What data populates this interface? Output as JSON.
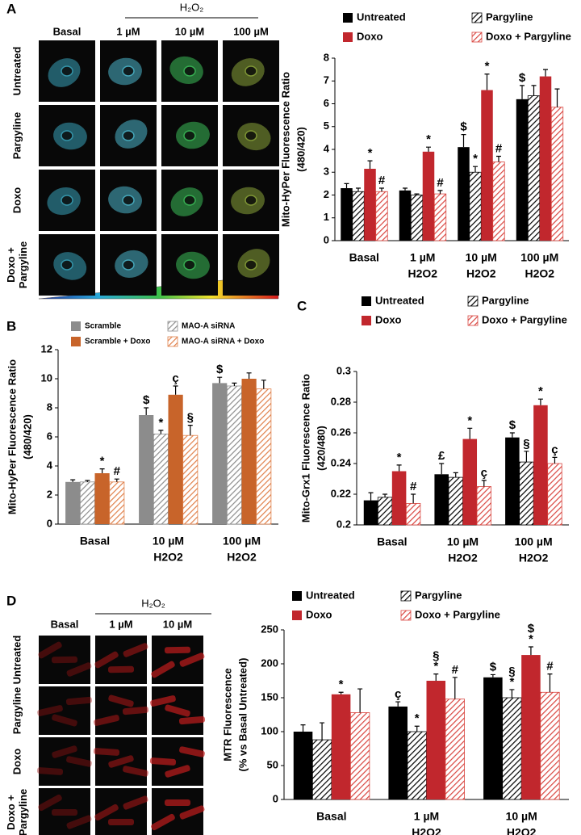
{
  "chart_data": [
    {
      "type": "bar",
      "panel_label": "A",
      "legend": "top",
      "ylabel": [
        "Mito-HyPer Fluorescence Ratio",
        "(480/420)"
      ],
      "categories": [
        [
          "Basal"
        ],
        [
          "1 µM",
          "H2O2"
        ],
        [
          "10 µM",
          "H2O2"
        ],
        [
          "100 µM",
          "H2O2"
        ]
      ],
      "ylim": [
        0,
        8
      ],
      "yticks": [
        0,
        1,
        2,
        3,
        4,
        5,
        6,
        7,
        8
      ],
      "series": [
        {
          "name": "Untreated",
          "color": "#000000",
          "hatch": false,
          "values": [
            2.3,
            2.2,
            4.1,
            6.2
          ],
          "errors": [
            0.2,
            0.1,
            0.55,
            0.6
          ],
          "annotations": [
            null,
            null,
            [
              "$"
            ],
            [
              "$"
            ]
          ]
        },
        {
          "name": "Pargyline",
          "color": "#000000",
          "hatch": true,
          "values": [
            2.15,
            2.0,
            3.0,
            6.35
          ],
          "errors": [
            0.15,
            0.05,
            0.25,
            0.45
          ],
          "annotations": [
            null,
            null,
            [
              "*"
            ],
            null
          ]
        },
        {
          "name": "Doxo",
          "color": "#c1272d",
          "hatch": false,
          "values": [
            3.15,
            3.9,
            6.6,
            7.2
          ],
          "errors": [
            0.35,
            0.2,
            0.7,
            0.3
          ],
          "annotations": [
            [
              "*"
            ],
            [
              "*"
            ],
            [
              "*"
            ],
            null
          ]
        },
        {
          "name": "Doxo + Pargyline",
          "color": "#d9453f",
          "hatch": true,
          "values": [
            2.15,
            2.05,
            3.45,
            5.85
          ],
          "errors": [
            0.15,
            0.15,
            0.25,
            0.8
          ],
          "annotations": [
            [
              "#"
            ],
            [
              "#"
            ],
            [
              "#"
            ],
            null
          ]
        }
      ]
    },
    {
      "type": "bar",
      "panel_label": "B",
      "legend": "top",
      "ylabel": [
        "Mito-HyPer Fluorescence Ratio",
        "(480/420)"
      ],
      "categories": [
        [
          "Basal"
        ],
        [
          "10 µM",
          "H2O2"
        ],
        [
          "100 µM",
          "H2O2"
        ]
      ],
      "ylim": [
        0,
        12
      ],
      "yticks": [
        0,
        2,
        4,
        6,
        8,
        10,
        12
      ],
      "series": [
        {
          "name": "Scramble",
          "color": "#8c8c8c",
          "hatch": false,
          "values": [
            2.9,
            7.5,
            9.7
          ],
          "errors": [
            0.15,
            0.5,
            0.4
          ],
          "annotations": [
            null,
            [
              "$"
            ],
            [
              "$"
            ]
          ]
        },
        {
          "name": "MAO-A siRNA",
          "color": "#8c8c8c",
          "hatch": true,
          "values": [
            2.9,
            6.2,
            9.5
          ],
          "errors": [
            0.1,
            0.25,
            0.2
          ],
          "annotations": [
            null,
            [
              "*"
            ],
            null
          ]
        },
        {
          "name": "Scramble + Doxo",
          "color": "#c8642a",
          "hatch": false,
          "values": [
            3.5,
            8.9,
            10.0
          ],
          "errors": [
            0.3,
            0.6,
            0.4
          ],
          "annotations": [
            [
              "*"
            ],
            [
              "ç"
            ],
            null
          ]
        },
        {
          "name": "MAO-A siRNA + Doxo",
          "color": "#e0804a",
          "hatch": true,
          "values": [
            2.9,
            6.1,
            9.3
          ],
          "errors": [
            0.2,
            0.7,
            0.6
          ],
          "annotations": [
            [
              "#"
            ],
            [
              "§"
            ],
            null
          ]
        }
      ]
    },
    {
      "type": "bar",
      "panel_label": "C",
      "legend": "top",
      "ylabel": [
        "Mito-Grx1 Fluorescence Ratio",
        "(420/480)"
      ],
      "categories": [
        [
          "Basal"
        ],
        [
          "10 µM",
          "H2O2"
        ],
        [
          "100 µM",
          "H2O2"
        ]
      ],
      "ylim": [
        0.2,
        0.3
      ],
      "yticks": [
        0.2,
        0.22,
        0.24,
        0.26,
        0.28,
        0.3
      ],
      "series": [
        {
          "name": "Untreated",
          "color": "#000000",
          "hatch": false,
          "values": [
            0.216,
            0.233,
            0.257
          ],
          "errors": [
            0.005,
            0.007,
            0.003
          ],
          "annotations": [
            null,
            [
              "£"
            ],
            [
              "$"
            ]
          ]
        },
        {
          "name": "Pargyline",
          "color": "#000000",
          "hatch": true,
          "values": [
            0.218,
            0.231,
            0.241
          ],
          "errors": [
            0.002,
            0.003,
            0.007
          ],
          "annotations": [
            null,
            null,
            [
              "§"
            ]
          ]
        },
        {
          "name": "Doxo",
          "color": "#c1272d",
          "hatch": false,
          "values": [
            0.235,
            0.256,
            0.278
          ],
          "errors": [
            0.004,
            0.007,
            0.004
          ],
          "annotations": [
            [
              "*"
            ],
            [
              "*"
            ],
            [
              "*"
            ]
          ]
        },
        {
          "name": "Doxo + Pargyline",
          "color": "#d9453f",
          "hatch": true,
          "values": [
            0.214,
            0.225,
            0.24
          ],
          "errors": [
            0.006,
            0.004,
            0.004
          ],
          "annotations": [
            [
              "#"
            ],
            [
              "ç"
            ],
            [
              "ç"
            ]
          ]
        }
      ]
    },
    {
      "type": "bar",
      "panel_label": "D",
      "legend": "top",
      "ylabel": [
        "MTR Fluorescence",
        "(% vs Basal Untreated)"
      ],
      "categories": [
        [
          "Basal"
        ],
        [
          "1 µM",
          "H2O2"
        ],
        [
          "10 µM",
          "H2O2"
        ]
      ],
      "ylim": [
        0,
        250
      ],
      "yticks": [
        0,
        50,
        100,
        150,
        200,
        250
      ],
      "series": [
        {
          "name": "Untreated",
          "color": "#000000",
          "hatch": false,
          "values": [
            100,
            137,
            180
          ],
          "errors": [
            10,
            7,
            4
          ],
          "annotations": [
            null,
            [
              "ç"
            ],
            [
              "$"
            ]
          ]
        },
        {
          "name": "Pargyline",
          "color": "#000000",
          "hatch": true,
          "values": [
            88,
            100,
            150
          ],
          "errors": [
            25,
            8,
            12
          ],
          "annotations": [
            null,
            [
              "*"
            ],
            [
              "§",
              "*"
            ]
          ]
        },
        {
          "name": "Doxo",
          "color": "#c1272d",
          "hatch": false,
          "values": [
            155,
            175,
            213
          ],
          "errors": [
            3,
            10,
            12
          ],
          "annotations": [
            [
              "*"
            ],
            [
              "§",
              "*"
            ],
            [
              "$",
              "*"
            ]
          ]
        },
        {
          "name": "Doxo + Pargyline",
          "color": "#d9453f",
          "hatch": true,
          "values": [
            128,
            148,
            158
          ],
          "errors": [
            35,
            32,
            27
          ],
          "annotations": [
            null,
            [
              "#"
            ],
            [
              "#"
            ]
          ]
        }
      ]
    }
  ],
  "image_grids": [
    {
      "header": "H₂O₂",
      "columns": [
        "Basal",
        "1 µM",
        "10 µM",
        "100 µM"
      ],
      "rows": [
        [
          "Untreated"
        ],
        [
          "Pargyline"
        ],
        [
          "Doxo"
        ],
        [
          "Doxo +",
          "Pargyline"
        ]
      ]
    },
    {
      "header": "H₂O₂",
      "columns": [
        "Basal",
        "1 µM",
        "10 µM"
      ],
      "rows": [
        [
          "Untreated"
        ],
        [
          "Pargyline"
        ],
        [
          "Doxo"
        ],
        [
          "Doxo +",
          "Pargyline"
        ]
      ]
    }
  ]
}
